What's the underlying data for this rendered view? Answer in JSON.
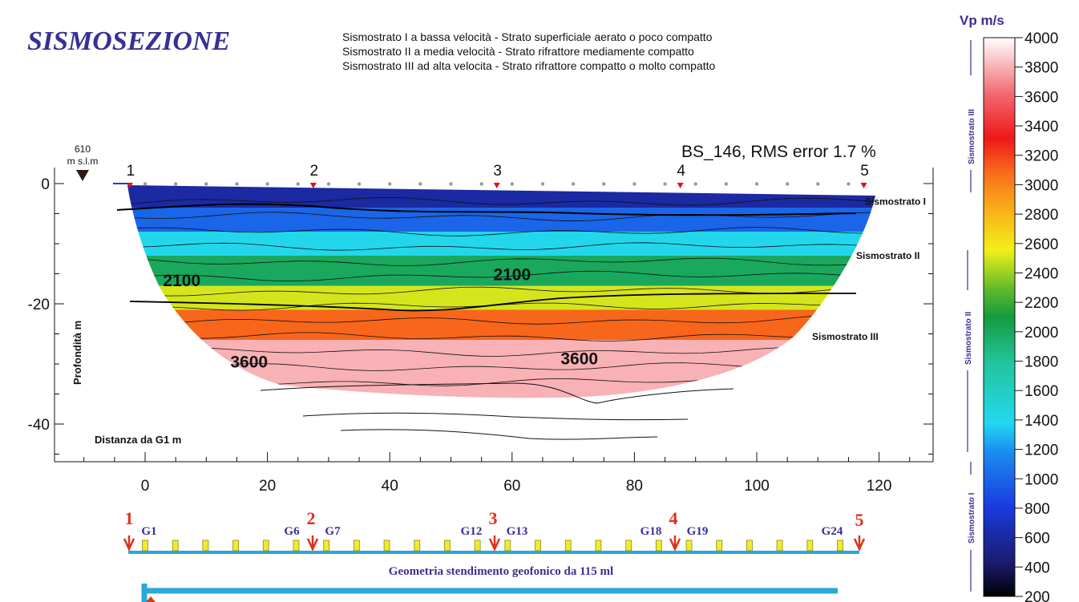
{
  "header": {
    "title": "SISMOSEZIONE",
    "legend_lines": [
      "Sismostrato I a bassa velocità  - Strato superficiale aerato o poco compatto",
      "Sismostrato II a media velocità  - Strato rifrattore mediamente compatto",
      "Sismostrato III ad alta velocita   - Strato rifrattore compatto o molto compatto"
    ]
  },
  "chart_data": {
    "type": "heatmap",
    "title": "BS_146,    RMS error 1.7 %",
    "xlabel": "Distanza da G1   m",
    "ylabel": "Profondità  m",
    "xlim": [
      -15,
      128
    ],
    "ylim": [
      -46,
      4
    ],
    "x_ticks": [
      0,
      20,
      40,
      60,
      80,
      100,
      120
    ],
    "y_ticks": [
      0,
      -20,
      -40
    ],
    "elevation_label_value": "610",
    "elevation_label_unit": "m s.l.m",
    "shots": [
      {
        "label": "1",
        "x": -2.5
      },
      {
        "label": "2",
        "x": 27.5
      },
      {
        "label": "3",
        "x": 57.5
      },
      {
        "label": "4",
        "x": 87.5
      },
      {
        "label": "5",
        "x": 117.5
      }
    ],
    "geophones_x": [
      0,
      5,
      10,
      15,
      20,
      25,
      30,
      35,
      40,
      45,
      50,
      55,
      60,
      65,
      70,
      75,
      80,
      85,
      90,
      95,
      100,
      105,
      110,
      115
    ],
    "contour_labels": [
      {
        "text": "2100",
        "x": 6,
        "y": -16
      },
      {
        "text": "2100",
        "x": 60,
        "y": -15
      },
      {
        "text": "3600",
        "x": 17,
        "y": -29.5
      },
      {
        "text": "3600",
        "x": 71,
        "y": -29
      }
    ],
    "velocity_bands": [
      {
        "depth_top": 0,
        "depth_bottom": -4,
        "vp": 600
      },
      {
        "depth_top": -4,
        "depth_bottom": -8,
        "vp": 1000
      },
      {
        "depth_top": -8,
        "depth_bottom": -12,
        "vp": 1400
      },
      {
        "depth_top": -12,
        "depth_bottom": -17,
        "vp": 2000
      },
      {
        "depth_top": -17,
        "depth_bottom": -21,
        "vp": 2500
      },
      {
        "depth_top": -21,
        "depth_bottom": -26,
        "vp": 3100
      },
      {
        "depth_top": -26,
        "depth_bottom": -33,
        "vp": 3800
      }
    ],
    "layer_labels": [
      {
        "text": "Sismostrato I",
        "x": 120,
        "y": -3.5
      },
      {
        "text": "Sismostrato II",
        "x": 118,
        "y": -12.5
      },
      {
        "text": "Sismostrato III",
        "x": 110,
        "y": -26
      }
    ],
    "colorbar": {
      "title": "Vp  m/s",
      "min": 200,
      "max": 4000,
      "ticks": [
        4000,
        3800,
        3600,
        3400,
        3200,
        3000,
        2800,
        2600,
        2400,
        2200,
        2000,
        1800,
        1600,
        1400,
        1200,
        1000,
        800,
        600,
        400,
        200
      ]
    },
    "side_labels": [
      "Sismostrato III",
      "Sismostrato II",
      "Sismostrato I"
    ]
  },
  "geometry": {
    "shot_labels": [
      "1",
      "2",
      "3",
      "4",
      "5"
    ],
    "geophone_labels": [
      "G1",
      "G6",
      "G7",
      "G12",
      "G13",
      "G18",
      "G19",
      "G24"
    ],
    "caption": "Geometria stendimento geofonico da 115 ml"
  }
}
